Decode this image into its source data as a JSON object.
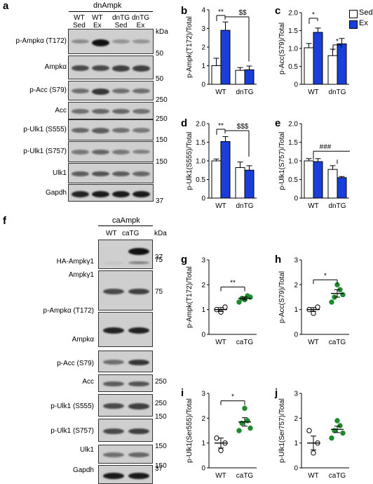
{
  "panels": {
    "a": {
      "letter": "a",
      "header": "dnAmpk",
      "columns": [
        "WT\nSed",
        "WT\nEx",
        "dnTG\nSed",
        "dnTG\nEx"
      ],
      "col_top": [
        "WT",
        "WT",
        "dnTG",
        "dnTG"
      ],
      "col_bottom": [
        "Sed",
        "Ex",
        "Sed",
        "Ex"
      ],
      "kda": "kDa",
      "rows": [
        {
          "label": "p-Ampkα (T172)",
          "marker": "50"
        },
        {
          "label": "Ampkα",
          "marker": "50"
        },
        {
          "label": "p-Acc (S79)",
          "marker": "250"
        },
        {
          "label": "Acc",
          "marker": "250"
        },
        {
          "label": "p-Ulk1 (S555)",
          "marker": "150"
        },
        {
          "label": "p-Ulk1 (S757)",
          "marker": "150"
        },
        {
          "label": "Ulk1",
          "marker": ""
        },
        {
          "label": "Gapdh",
          "marker": "37"
        }
      ]
    },
    "f": {
      "letter": "f",
      "header": "caAmpk",
      "columns": [
        "WT",
        "caTG"
      ],
      "kda": "kDa",
      "rows": [
        {
          "label": "HA-Ampkγ1",
          "marker": "37"
        },
        {
          "label": "Ampkγ1",
          "marker": ""
        },
        {
          "label": "p-Ampkα (T172)",
          "marker": "75"
        },
        {
          "label": "Ampkα",
          "marker": "75"
        },
        {
          "label": "p-Acc (S79)",
          "marker": "250"
        },
        {
          "label": "Acc",
          "marker": "250"
        },
        {
          "label": "p-Ulk1 (S555)",
          "marker": "150"
        },
        {
          "label": "p-Ulk1 (S757)",
          "marker": "150"
        },
        {
          "label": "Ulk1",
          "marker": "150"
        },
        {
          "label": "Gapdh",
          "marker": "37"
        }
      ]
    }
  },
  "legend": {
    "sed": "Sed",
    "ex": "Ex"
  },
  "colors": {
    "sed": "#ffffff",
    "ex": "#1a3fd9",
    "green": "#1f8a2e"
  },
  "chart_data": [
    {
      "panel": "b",
      "type": "bar",
      "ylabel": "p-Ampk(T172)/Total",
      "categories": [
        "WT",
        "dnTG"
      ],
      "series": [
        {
          "name": "Sed",
          "values": [
            1.0,
            0.75
          ]
        },
        {
          "name": "Ex",
          "values": [
            2.9,
            0.78
          ]
        }
      ],
      "errors": [
        [
          0.4,
          0.15
        ],
        [
          0.45,
          0.2
        ]
      ],
      "ylim": [
        0,
        4
      ],
      "yticks": [
        "0",
        "1",
        "2",
        "3",
        "4"
      ],
      "annotations": [
        "**",
        "$$"
      ]
    },
    {
      "panel": "c",
      "type": "bar",
      "ylabel": "p-Acc(S79)/Total",
      "categories": [
        "WT",
        "dnTG"
      ],
      "series": [
        {
          "name": "Sed",
          "values": [
            1.02,
            0.8
          ]
        },
        {
          "name": "Ex",
          "values": [
            1.45,
            1.13
          ]
        }
      ],
      "errors": [
        [
          0.12,
          0.18
        ],
        [
          0.12,
          0.15
        ]
      ],
      "ylim": [
        0,
        2.0
      ],
      "yticks": [
        "0",
        "0.5",
        "1.0",
        "1.5",
        "2.0"
      ],
      "annotations": [
        "*",
        "*"
      ]
    },
    {
      "panel": "d",
      "type": "bar",
      "ylabel": "p-Ulk1(S555)/Total",
      "categories": [
        "WT",
        "dnTG"
      ],
      "series": [
        {
          "name": "Sed",
          "values": [
            1.0,
            0.82
          ]
        },
        {
          "name": "Ex",
          "values": [
            1.52,
            0.75
          ]
        }
      ],
      "errors": [
        [
          0.05,
          0.15
        ],
        [
          0.13,
          0.12
        ]
      ],
      "ylim": [
        0,
        2.0
      ],
      "yticks": [
        "0",
        "0.5",
        "1.0",
        "1.5",
        "2.0"
      ],
      "annotations": [
        "**",
        "$$$"
      ]
    },
    {
      "panel": "e",
      "type": "bar",
      "ylabel": "p-Ulk1(S757)/Total",
      "categories": [
        "WT",
        "dnTG"
      ],
      "series": [
        {
          "name": "Sed",
          "values": [
            1.0,
            0.77
          ]
        },
        {
          "name": "Ex",
          "values": [
            0.98,
            0.55
          ]
        }
      ],
      "errors": [
        [
          0.06,
          0.1
        ],
        [
          0.08,
          0.03
        ]
      ],
      "ylim": [
        0,
        2.0
      ],
      "yticks": [
        "0",
        "0.5",
        "1.0",
        "1.5",
        "2.0"
      ],
      "annotations": [
        "###"
      ]
    },
    {
      "panel": "g",
      "type": "scatter",
      "ylabel": "p-Ampk(T172)/Total",
      "categories": [
        "WT",
        "caTG"
      ],
      "points": [
        [
          1.0,
          0.9,
          1.1
        ],
        [
          1.3,
          1.45,
          1.4,
          1.55,
          1.5
        ]
      ],
      "means": [
        1.0,
        1.45
      ],
      "sems": [
        0.08,
        0.06
      ],
      "ylim": [
        0,
        3
      ],
      "yticks": [
        "0",
        "1",
        "2",
        "3"
      ],
      "annotations": [
        "**"
      ]
    },
    {
      "panel": "h",
      "type": "scatter",
      "ylabel": "p-Acc(S79)/Total",
      "categories": [
        "WT",
        "caTG"
      ],
      "points": [
        [
          1.0,
          0.85,
          1.1
        ],
        [
          1.3,
          1.5,
          2.0,
          1.8,
          1.6
        ]
      ],
      "means": [
        1.0,
        1.65
      ],
      "sems": [
        0.08,
        0.15
      ],
      "ylim": [
        0,
        3
      ],
      "yticks": [
        "0",
        "1",
        "2",
        "3"
      ],
      "annotations": [
        "*"
      ]
    },
    {
      "panel": "i",
      "type": "scatter",
      "ylabel": "p-Ulk1(Ser555)/Total",
      "categories": [
        "WT",
        "caTG"
      ],
      "points": [
        [
          1.2,
          0.7,
          1.0
        ],
        [
          1.5,
          1.8,
          2.4,
          1.9,
          1.6
        ]
      ],
      "means": [
        1.0,
        1.85
      ],
      "sems": [
        0.2,
        0.17
      ],
      "ylim": [
        0,
        3
      ],
      "yticks": [
        "0",
        "1",
        "2",
        "3"
      ],
      "annotations": [
        "*"
      ]
    },
    {
      "panel": "j",
      "type": "scatter",
      "ylabel": "p-Ulk1(Ser757)/Total",
      "categories": [
        "WT",
        "caTG"
      ],
      "points": [
        [
          1.5,
          0.6,
          1.0
        ],
        [
          1.2,
          1.5,
          1.9,
          1.7,
          1.4
        ]
      ],
      "means": [
        1.0,
        1.55
      ],
      "sems": [
        0.28,
        0.13
      ],
      "ylim": [
        0,
        3
      ],
      "yticks": [
        "0",
        "1",
        "2",
        "3"
      ],
      "annotations": []
    }
  ]
}
